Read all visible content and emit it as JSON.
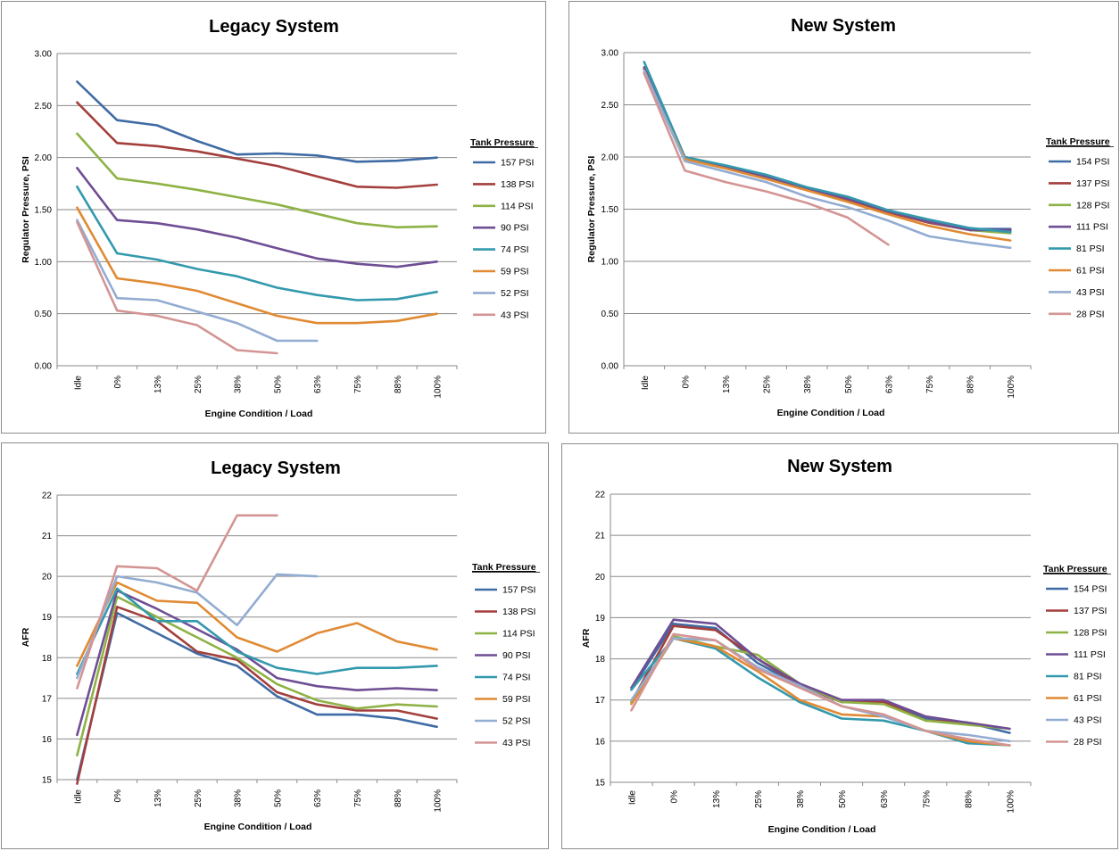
{
  "chart_data": [
    {
      "type": "line",
      "title": "Legacy System",
      "xlabel": "Engine Condition / Load",
      "ylabel": "Regulator Pressure, PSI",
      "categories": [
        "Idle",
        "0%",
        "13%",
        "25%",
        "38%",
        "50%",
        "63%",
        "75%",
        "88%",
        "100%"
      ],
      "ylim": [
        0,
        3
      ],
      "yticks": [
        "0.00",
        "0.50",
        "1.00",
        "1.50",
        "2.00",
        "2.50",
        "3.00"
      ],
      "grid": "horizontal",
      "legend_title": "Tank Pressure",
      "legend_position": "right",
      "series": [
        {
          "name": "157 PSI",
          "color": "#3f6ba4",
          "values": [
            2.73,
            2.36,
            2.31,
            2.16,
            2.03,
            2.04,
            2.02,
            1.96,
            1.97,
            2.0
          ]
        },
        {
          "name": "138 PSI",
          "color": "#a33f3c",
          "values": [
            2.53,
            2.14,
            2.11,
            2.06,
            1.99,
            1.92,
            1.82,
            1.72,
            1.71,
            1.74
          ]
        },
        {
          "name": "114 PSI",
          "color": "#8eb245",
          "values": [
            2.23,
            1.8,
            1.75,
            1.69,
            1.62,
            1.55,
            1.46,
            1.37,
            1.33,
            1.34
          ]
        },
        {
          "name": "90 PSI",
          "color": "#6f4e94",
          "values": [
            1.9,
            1.4,
            1.37,
            1.31,
            1.23,
            1.13,
            1.03,
            0.98,
            0.95,
            1.0
          ]
        },
        {
          "name": "74 PSI",
          "color": "#3399ad",
          "values": [
            1.72,
            1.08,
            1.02,
            0.93,
            0.86,
            0.75,
            0.68,
            0.63,
            0.64,
            0.71
          ]
        },
        {
          "name": "59 PSI",
          "color": "#e08a33",
          "values": [
            1.52,
            0.84,
            0.79,
            0.72,
            0.6,
            0.48,
            0.41,
            0.41,
            0.43,
            0.5
          ]
        },
        {
          "name": "52 PSI",
          "color": "#93acd1",
          "values": [
            1.4,
            0.65,
            0.63,
            0.52,
            0.41,
            0.24,
            0.24,
            null,
            null,
            null
          ]
        },
        {
          "name": "43 PSI",
          "color": "#d39593",
          "values": [
            1.38,
            0.53,
            0.48,
            0.39,
            0.15,
            0.12,
            null,
            null,
            null,
            null
          ]
        }
      ]
    },
    {
      "type": "line",
      "title": "New System",
      "xlabel": "Engine Condition / Load",
      "ylabel": "Regulator Pressure, PSI",
      "categories": [
        "Idle",
        "0%",
        "13%",
        "25%",
        "38%",
        "50%",
        "63%",
        "75%",
        "88%",
        "100%"
      ],
      "ylim": [
        0,
        3
      ],
      "yticks": [
        "0.00",
        "0.50",
        "1.00",
        "1.50",
        "2.00",
        "2.50",
        "3.00"
      ],
      "grid": "horizontal",
      "legend_title": "Tank Pressure",
      "legend_position": "right",
      "series": [
        {
          "name": "154 PSI",
          "color": "#3f6ba4",
          "values": [
            2.86,
            2.0,
            1.91,
            1.82,
            1.7,
            1.6,
            1.48,
            1.38,
            1.31,
            1.31
          ]
        },
        {
          "name": "137 PSI",
          "color": "#a33f3c",
          "values": [
            2.85,
            1.99,
            1.9,
            1.8,
            1.69,
            1.59,
            1.47,
            1.37,
            1.3,
            1.29
          ]
        },
        {
          "name": "128 PSI",
          "color": "#8eb245",
          "values": [
            2.84,
            1.99,
            1.9,
            1.81,
            1.7,
            1.6,
            1.48,
            1.38,
            1.3,
            1.27
          ]
        },
        {
          "name": "111 PSI",
          "color": "#6f4e94",
          "values": [
            2.84,
            1.99,
            1.9,
            1.81,
            1.7,
            1.6,
            1.48,
            1.38,
            1.3,
            1.3
          ]
        },
        {
          "name": "81 PSI",
          "color": "#3399ad",
          "values": [
            2.91,
            2.0,
            1.92,
            1.83,
            1.71,
            1.62,
            1.49,
            1.4,
            1.32,
            1.28
          ]
        },
        {
          "name": "61 PSI",
          "color": "#e08a33",
          "values": [
            2.81,
            1.98,
            1.89,
            1.79,
            1.68,
            1.57,
            1.45,
            1.34,
            1.26,
            1.2
          ]
        },
        {
          "name": "43 PSI",
          "color": "#93acd1",
          "values": [
            2.83,
            1.96,
            1.86,
            1.76,
            1.62,
            1.52,
            1.39,
            1.24,
            1.18,
            1.13
          ]
        },
        {
          "name": "28 PSI",
          "color": "#d39593",
          "values": [
            2.8,
            1.87,
            1.76,
            1.67,
            1.56,
            1.42,
            1.16,
            null,
            null,
            null
          ]
        }
      ]
    },
    {
      "type": "line",
      "title": "Legacy System",
      "xlabel": "Engine Condition / Load",
      "ylabel": "AFR",
      "categories": [
        "Idle",
        "0%",
        "13%",
        "25%",
        "38%",
        "50%",
        "63%",
        "75%",
        "88%",
        "100%"
      ],
      "ylim": [
        15,
        22
      ],
      "yticks": [
        "15",
        "16",
        "17",
        "18",
        "19",
        "20",
        "21",
        "22"
      ],
      "grid": "horizontal",
      "legend_title": "Tank Pressure",
      "legend_position": "right",
      "series": [
        {
          "name": "157 PSI",
          "color": "#3f6ba4",
          "values": [
            15.0,
            19.1,
            18.6,
            18.1,
            17.8,
            17.05,
            16.6,
            16.6,
            16.5,
            16.3
          ]
        },
        {
          "name": "138 PSI",
          "color": "#a33f3c",
          "values": [
            14.9,
            19.25,
            18.9,
            18.15,
            17.95,
            17.15,
            16.85,
            16.7,
            16.7,
            16.5
          ]
        },
        {
          "name": "114 PSI",
          "color": "#8eb245",
          "values": [
            15.6,
            19.5,
            19.0,
            18.5,
            18.0,
            17.35,
            16.95,
            16.75,
            16.85,
            16.8
          ]
        },
        {
          "name": "90 PSI",
          "color": "#6f4e94",
          "values": [
            16.1,
            19.65,
            19.2,
            18.7,
            18.2,
            17.5,
            17.3,
            17.2,
            17.25,
            17.2
          ]
        },
        {
          "name": "74 PSI",
          "color": "#3399ad",
          "values": [
            17.6,
            19.7,
            18.9,
            18.9,
            18.15,
            17.75,
            17.6,
            17.75,
            17.75,
            17.8
          ]
        },
        {
          "name": "59 PSI",
          "color": "#e08a33",
          "values": [
            17.8,
            19.85,
            19.4,
            19.35,
            18.5,
            18.15,
            18.6,
            18.85,
            18.4,
            18.2
          ]
        },
        {
          "name": "52 PSI",
          "color": "#93acd1",
          "values": [
            17.5,
            20.0,
            19.85,
            19.6,
            18.8,
            20.05,
            20.0,
            null,
            null,
            null
          ]
        },
        {
          "name": "43 PSI",
          "color": "#d39593",
          "values": [
            17.25,
            20.25,
            20.2,
            19.65,
            21.5,
            21.5,
            null,
            null,
            null,
            null
          ]
        }
      ]
    },
    {
      "type": "line",
      "title": "New System",
      "xlabel": "Engine Condition / Load",
      "ylabel": "AFR",
      "categories": [
        "Idle",
        "0%",
        "13%",
        "25%",
        "38%",
        "50%",
        "63%",
        "75%",
        "88%",
        "100%"
      ],
      "ylim": [
        15,
        22
      ],
      "yticks": [
        "15",
        "16",
        "17",
        "18",
        "19",
        "20",
        "21",
        "22"
      ],
      "grid": "horizontal",
      "legend_title": "Tank Pressure",
      "legend_position": "right",
      "series": [
        {
          "name": "154 PSI",
          "color": "#3f6ba4",
          "values": [
            17.25,
            18.85,
            18.75,
            17.9,
            17.35,
            16.95,
            16.95,
            16.55,
            16.45,
            16.2
          ]
        },
        {
          "name": "137 PSI",
          "color": "#a33f3c",
          "values": [
            16.95,
            18.8,
            18.7,
            18.0,
            17.35,
            16.95,
            16.95,
            16.5,
            16.45,
            16.3
          ]
        },
        {
          "name": "128 PSI",
          "color": "#8eb245",
          "values": [
            16.95,
            18.55,
            18.3,
            18.1,
            17.4,
            16.95,
            16.9,
            16.5,
            16.4,
            16.3
          ]
        },
        {
          "name": "111 PSI",
          "color": "#6f4e94",
          "values": [
            17.3,
            18.95,
            18.85,
            18.0,
            17.4,
            17.0,
            17.0,
            16.6,
            16.45,
            16.3
          ]
        },
        {
          "name": "81 PSI",
          "color": "#3399ad",
          "values": [
            17.25,
            18.5,
            18.25,
            17.55,
            16.95,
            16.55,
            16.5,
            16.25,
            15.95,
            15.9
          ]
        },
        {
          "name": "61 PSI",
          "color": "#e08a33",
          "values": [
            16.9,
            18.5,
            18.3,
            17.7,
            17.0,
            16.65,
            16.6,
            16.25,
            16.0,
            15.9
          ]
        },
        {
          "name": "43 PSI",
          "color": "#93acd1",
          "values": [
            17.0,
            18.5,
            18.45,
            17.8,
            17.35,
            16.85,
            16.6,
            16.25,
            16.15,
            16.0
          ]
        },
        {
          "name": "28 PSI",
          "color": "#d39593",
          "values": [
            16.75,
            18.6,
            18.45,
            17.75,
            17.3,
            16.85,
            16.65,
            16.25,
            16.05,
            15.9
          ]
        }
      ]
    }
  ]
}
